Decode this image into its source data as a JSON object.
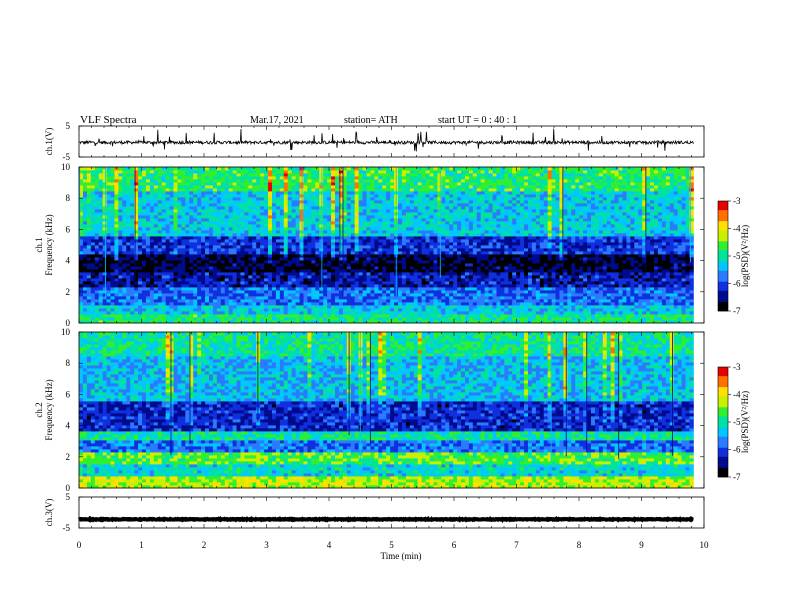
{
  "header": {
    "title": "VLF  Spectra",
    "date": "Mar.17, 2021",
    "station": "station= ATH",
    "start": "start  UT  =    0  : 40 : 1"
  },
  "chart_data": [
    {
      "type": "line",
      "panel": "ch1-waveform",
      "ylabel": "ch.1(V)",
      "yticklabels": [
        "5",
        "-5"
      ],
      "ylim": [
        -5,
        5
      ],
      "xlim": [
        0,
        10
      ],
      "x_extent": [
        0,
        9.83
      ],
      "trace_color": "#000000",
      "baseline": -0.3,
      "noise_amplitude": 0.5,
      "spike_amplitude": 3.5
    },
    {
      "type": "heatmap",
      "panel": "ch1-spectrogram",
      "ylabel": "ch.1\nFrequency  (kHz)",
      "yticks": [
        0,
        2,
        4,
        6,
        8,
        10
      ],
      "ylim": [
        0,
        10
      ],
      "xlim": [
        0,
        10
      ],
      "x_extent": [
        0,
        9.83
      ],
      "z_label": "log(PSD)(V²/Hz)",
      "zlim": [
        -7,
        -3
      ],
      "zticks": [
        -3,
        -4,
        -5,
        -6,
        -7
      ],
      "bands_khz": [
        {
          "f0": 0,
          "f1": 0.5,
          "level": -4.9
        },
        {
          "f0": 0.5,
          "f1": 1.2,
          "level": -5.3
        },
        {
          "f0": 1.2,
          "f1": 2.3,
          "level": -5.8
        },
        {
          "f0": 2.3,
          "f1": 3.2,
          "level": -6.3
        },
        {
          "f0": 3.2,
          "f1": 4.5,
          "level": -6.7
        },
        {
          "f0": 4.5,
          "f1": 5.5,
          "level": -6.1
        },
        {
          "f0": 5.5,
          "f1": 8.5,
          "level": -5.3
        },
        {
          "f0": 8.5,
          "f1": 10,
          "level": -4.8
        }
      ]
    },
    {
      "type": "heatmap",
      "panel": "ch2-spectrogram",
      "ylabel": "ch.2\nFrequency  (kHz)",
      "yticks": [
        0,
        2,
        4,
        6,
        8,
        10
      ],
      "ylim": [
        0,
        10
      ],
      "xlim": [
        0,
        10
      ],
      "x_extent": [
        0,
        9.83
      ],
      "z_label": "log(PSD)(V²/Hz)",
      "zlim": [
        -7,
        -3
      ],
      "zticks": [
        -3,
        -4,
        -5,
        -6,
        -7
      ],
      "bands_khz": [
        {
          "f0": 0,
          "f1": 0.7,
          "level": -4.3
        },
        {
          "f0": 0.7,
          "f1": 1.6,
          "level": -5.2
        },
        {
          "f0": 1.6,
          "f1": 2.3,
          "level": -4.6
        },
        {
          "f0": 2.3,
          "f1": 3.0,
          "level": -5.8
        },
        {
          "f0": 3.0,
          "f1": 3.6,
          "level": -5.0
        },
        {
          "f0": 3.6,
          "f1": 5.5,
          "level": -6.2
        },
        {
          "f0": 5.5,
          "f1": 8.5,
          "level": -5.4
        },
        {
          "f0": 8.5,
          "f1": 10,
          "level": -5.0
        }
      ]
    },
    {
      "type": "line",
      "panel": "ch3-waveform",
      "ylabel": "ch.3(V)",
      "yticklabels": [
        "5",
        "-5"
      ],
      "ylim": [
        -5,
        5
      ],
      "xlim": [
        0,
        10
      ],
      "x_extent": [
        0,
        9.83
      ],
      "trace_color": "#000000",
      "level": -2.2,
      "noise_amplitude": 0.12
    }
  ],
  "xaxis": {
    "label": "Time  (min)",
    "ticks": [
      0,
      1,
      2,
      3,
      4,
      5,
      6,
      7,
      8,
      9,
      10
    ]
  },
  "colorbar": {
    "label": "log(PSD)(V²/Hz)",
    "ticks": [
      "-3",
      "-4",
      "-5",
      "-6",
      "-7"
    ]
  },
  "colormap": [
    "#000000",
    "#000a8c",
    "#1030e0",
    "#2a7bff",
    "#00c8ff",
    "#00e3a0",
    "#30ee30",
    "#c8f000",
    "#ffe000",
    "#ff7000",
    "#e60000",
    "#ffffff"
  ]
}
